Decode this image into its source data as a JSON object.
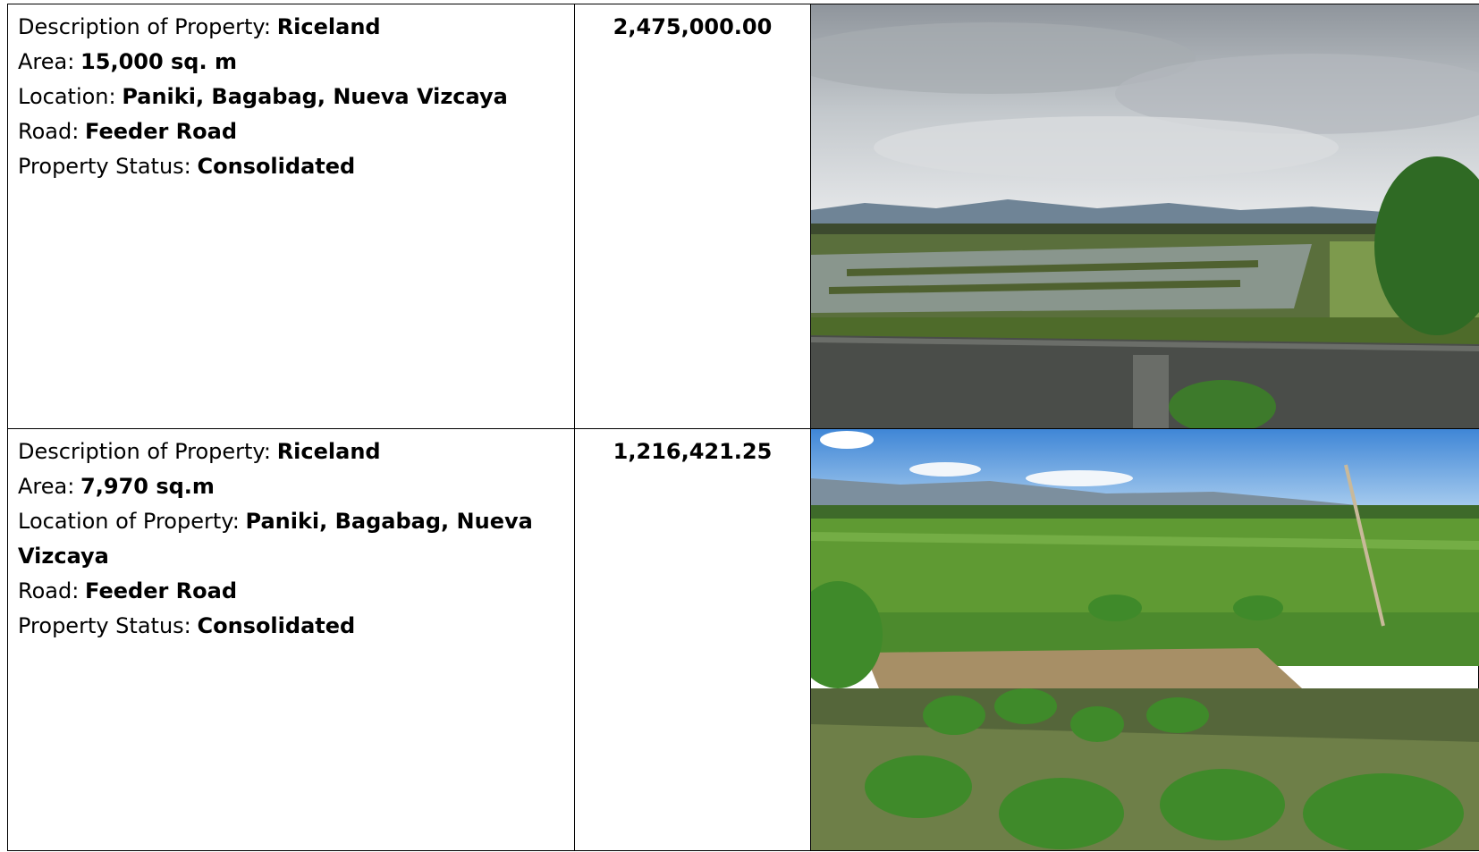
{
  "table": {
    "rows": [
      {
        "fields": [
          {
            "label": "Description of Property:",
            "value": "Riceland"
          },
          {
            "label": "Area:",
            "value": "15,000 sq. m"
          },
          {
            "label": "Location:",
            "value": "Paniki, Bagabag, Nueva Vizcaya"
          },
          {
            "label": "Road:",
            "value": "Feeder Road"
          },
          {
            "label": "Property Status:",
            "value": "Consolidated"
          }
        ],
        "price": "2,475,000.00"
      },
      {
        "fields": [
          {
            "label": "Description of Property:",
            "value": "Riceland"
          },
          {
            "label": "Area:",
            "value": "7,970 sq.m"
          },
          {
            "label": "Location of Property:",
            "value": "Paniki, Bagabag, Nueva Vizcaya"
          },
          {
            "label": "Road:",
            "value": "Feeder Road"
          },
          {
            "label": "Property Status:",
            "value": "Consolidated"
          }
        ],
        "price": "1,216,421.25"
      }
    ]
  }
}
